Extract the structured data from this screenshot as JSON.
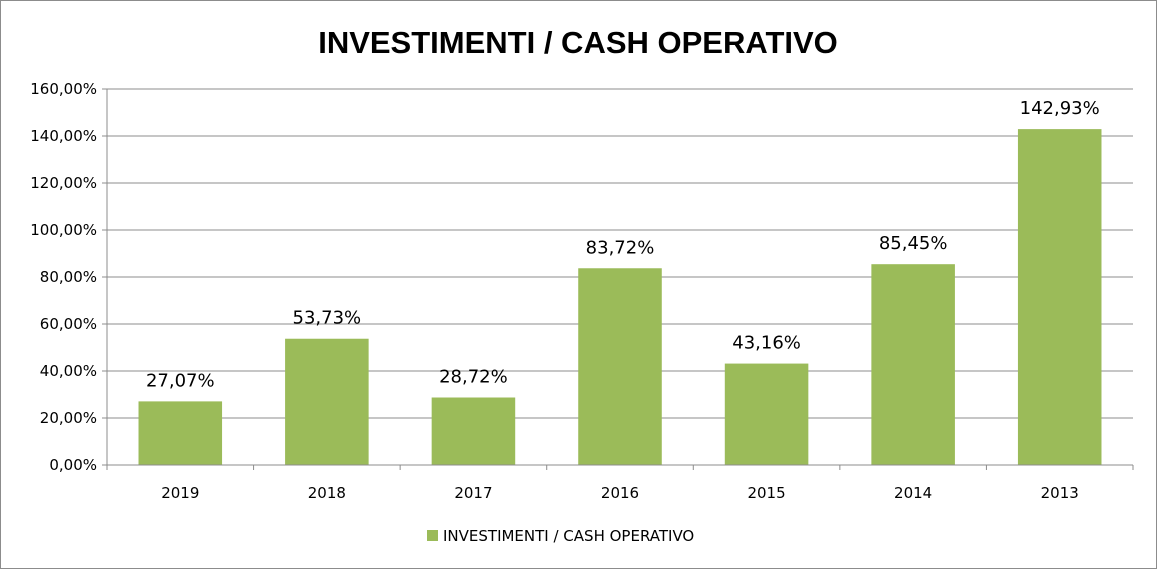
{
  "chart_data": {
    "type": "bar",
    "title": "INVESTIMENTI / CASH OPERATIVO",
    "categories": [
      "2019",
      "2018",
      "2017",
      "2016",
      "2015",
      "2014",
      "2013"
    ],
    "series": [
      {
        "name": "INVESTIMENTI / CASH OPERATIVO",
        "values": [
          27.07,
          53.73,
          28.72,
          83.72,
          43.16,
          85.45,
          142.93
        ],
        "data_labels": [
          "27,07%",
          "53,73%",
          "28,72%",
          "83,72%",
          "43,16%",
          "85,45%",
          "142,93%"
        ],
        "color": "#9bbb59"
      }
    ],
    "ylim": [
      0,
      160
    ],
    "y_ticks": [
      0,
      20,
      40,
      60,
      80,
      100,
      120,
      140,
      160
    ],
    "y_tick_labels": [
      "0,00%",
      "20,00%",
      "40,00%",
      "60,00%",
      "80,00%",
      "100,00%",
      "120,00%",
      "140,00%",
      "160,00%"
    ],
    "grid": true,
    "legend_position": "bottom",
    "colors": {
      "gridline": "#8c8c8c",
      "axis": "#8c8c8c"
    }
  }
}
